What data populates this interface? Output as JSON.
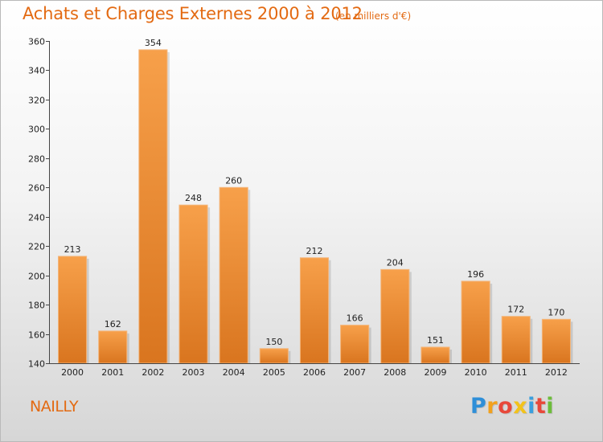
{
  "header": {
    "title": "Achats et Charges Externes 2000 à 2012",
    "subtitle": "(en milliers d'€)"
  },
  "footer": {
    "place": "NAILLY",
    "logo": {
      "letters": [
        "P",
        "r",
        "o",
        "x",
        "i",
        "t",
        "i"
      ],
      "colors": [
        "#2f8fd8",
        "#f2a11d",
        "#e8483a",
        "#f2c21b",
        "#3a9fde",
        "#e8483a",
        "#6cbd3a"
      ]
    }
  },
  "colors": {
    "accent": "#e36a12",
    "bar_top": "#f7a04a",
    "bar_bottom": "#d9751f"
  },
  "chart_data": {
    "type": "bar",
    "categories": [
      "2000",
      "2001",
      "2002",
      "2003",
      "2004",
      "2005",
      "2006",
      "2007",
      "2008",
      "2009",
      "2010",
      "2011",
      "2012"
    ],
    "values": [
      213,
      162,
      354,
      248,
      260,
      150,
      212,
      166,
      204,
      151,
      196,
      172,
      170
    ],
    "ylim": [
      140,
      360
    ],
    "yticks": [
      140,
      160,
      180,
      200,
      220,
      240,
      260,
      280,
      300,
      320,
      340,
      360
    ],
    "grid": false,
    "title": "Achats et Charges Externes 2000 à 2012",
    "subtitle": "(en milliers d'€)"
  }
}
